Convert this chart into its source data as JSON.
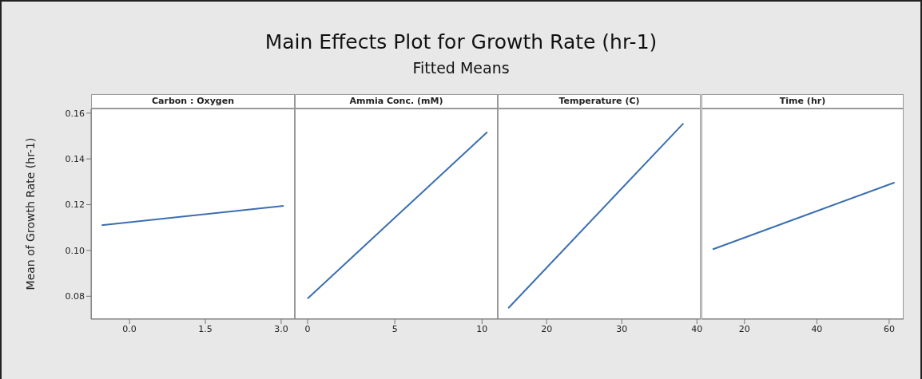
{
  "chart_data": [
    {
      "type": "line",
      "xlabel": "Carbon : Oxygen",
      "ylabel": "Mean of Growth Rate (hr-1)",
      "x": [
        -0.55,
        3.05
      ],
      "values": [
        0.111,
        0.1195
      ],
      "color": "#3a6fb0",
      "xlim": [
        -0.76,
        3.27
      ],
      "xticks": [
        {
          "value": 0,
          "label": "0.0"
        },
        1.5,
        {
          "value": 3,
          "label": "3.0"
        }
      ],
      "ylim": [
        0.07,
        0.162
      ],
      "yticks": [
        0.08,
        {
          "value": 0.1,
          "label": "0.10"
        },
        0.12,
        0.14,
        0.16
      ],
      "grid": false,
      "marker": "none"
    },
    {
      "type": "line",
      "title": "Main Effects Plot for Growth Rate (hr-1)",
      "subtitle": "Fitted Means",
      "xlabel": "Ammia Conc. (mM)",
      "x": [
        0,
        10.3
      ],
      "values": [
        0.079,
        0.1517
      ],
      "color": "#3a6fb0",
      "xlim": [
        -0.73,
        10.9
      ],
      "xticks": [
        0,
        5,
        10
      ],
      "ylim": [
        0.07,
        0.162
      ],
      "tick_labels": "x",
      "grid": false,
      "marker": "none"
    },
    {
      "type": "line",
      "xlabel": "Temperature (C)",
      "x": [
        14.9,
        38.2
      ],
      "values": [
        0.0748,
        0.1555
      ],
      "color": "#3a6fb0",
      "xlim": [
        13.5,
        40.5
      ],
      "xticks": [
        20,
        30,
        40
      ],
      "ylim": [
        0.07,
        0.162
      ],
      "tick_labels": "x",
      "grid": false,
      "marker": "none"
    },
    {
      "type": "line",
      "xlabel": "Time (hr)",
      "x": [
        11.2,
        61.5
      ],
      "values": [
        0.1005,
        0.1297
      ],
      "color": "#3a6fb0",
      "xlim": [
        8.1,
        64
      ],
      "xticks": [
        20,
        40,
        60
      ],
      "ylim": [
        0.07,
        0.162
      ],
      "tick_labels": "x",
      "grid": false,
      "marker": "none"
    }
  ]
}
